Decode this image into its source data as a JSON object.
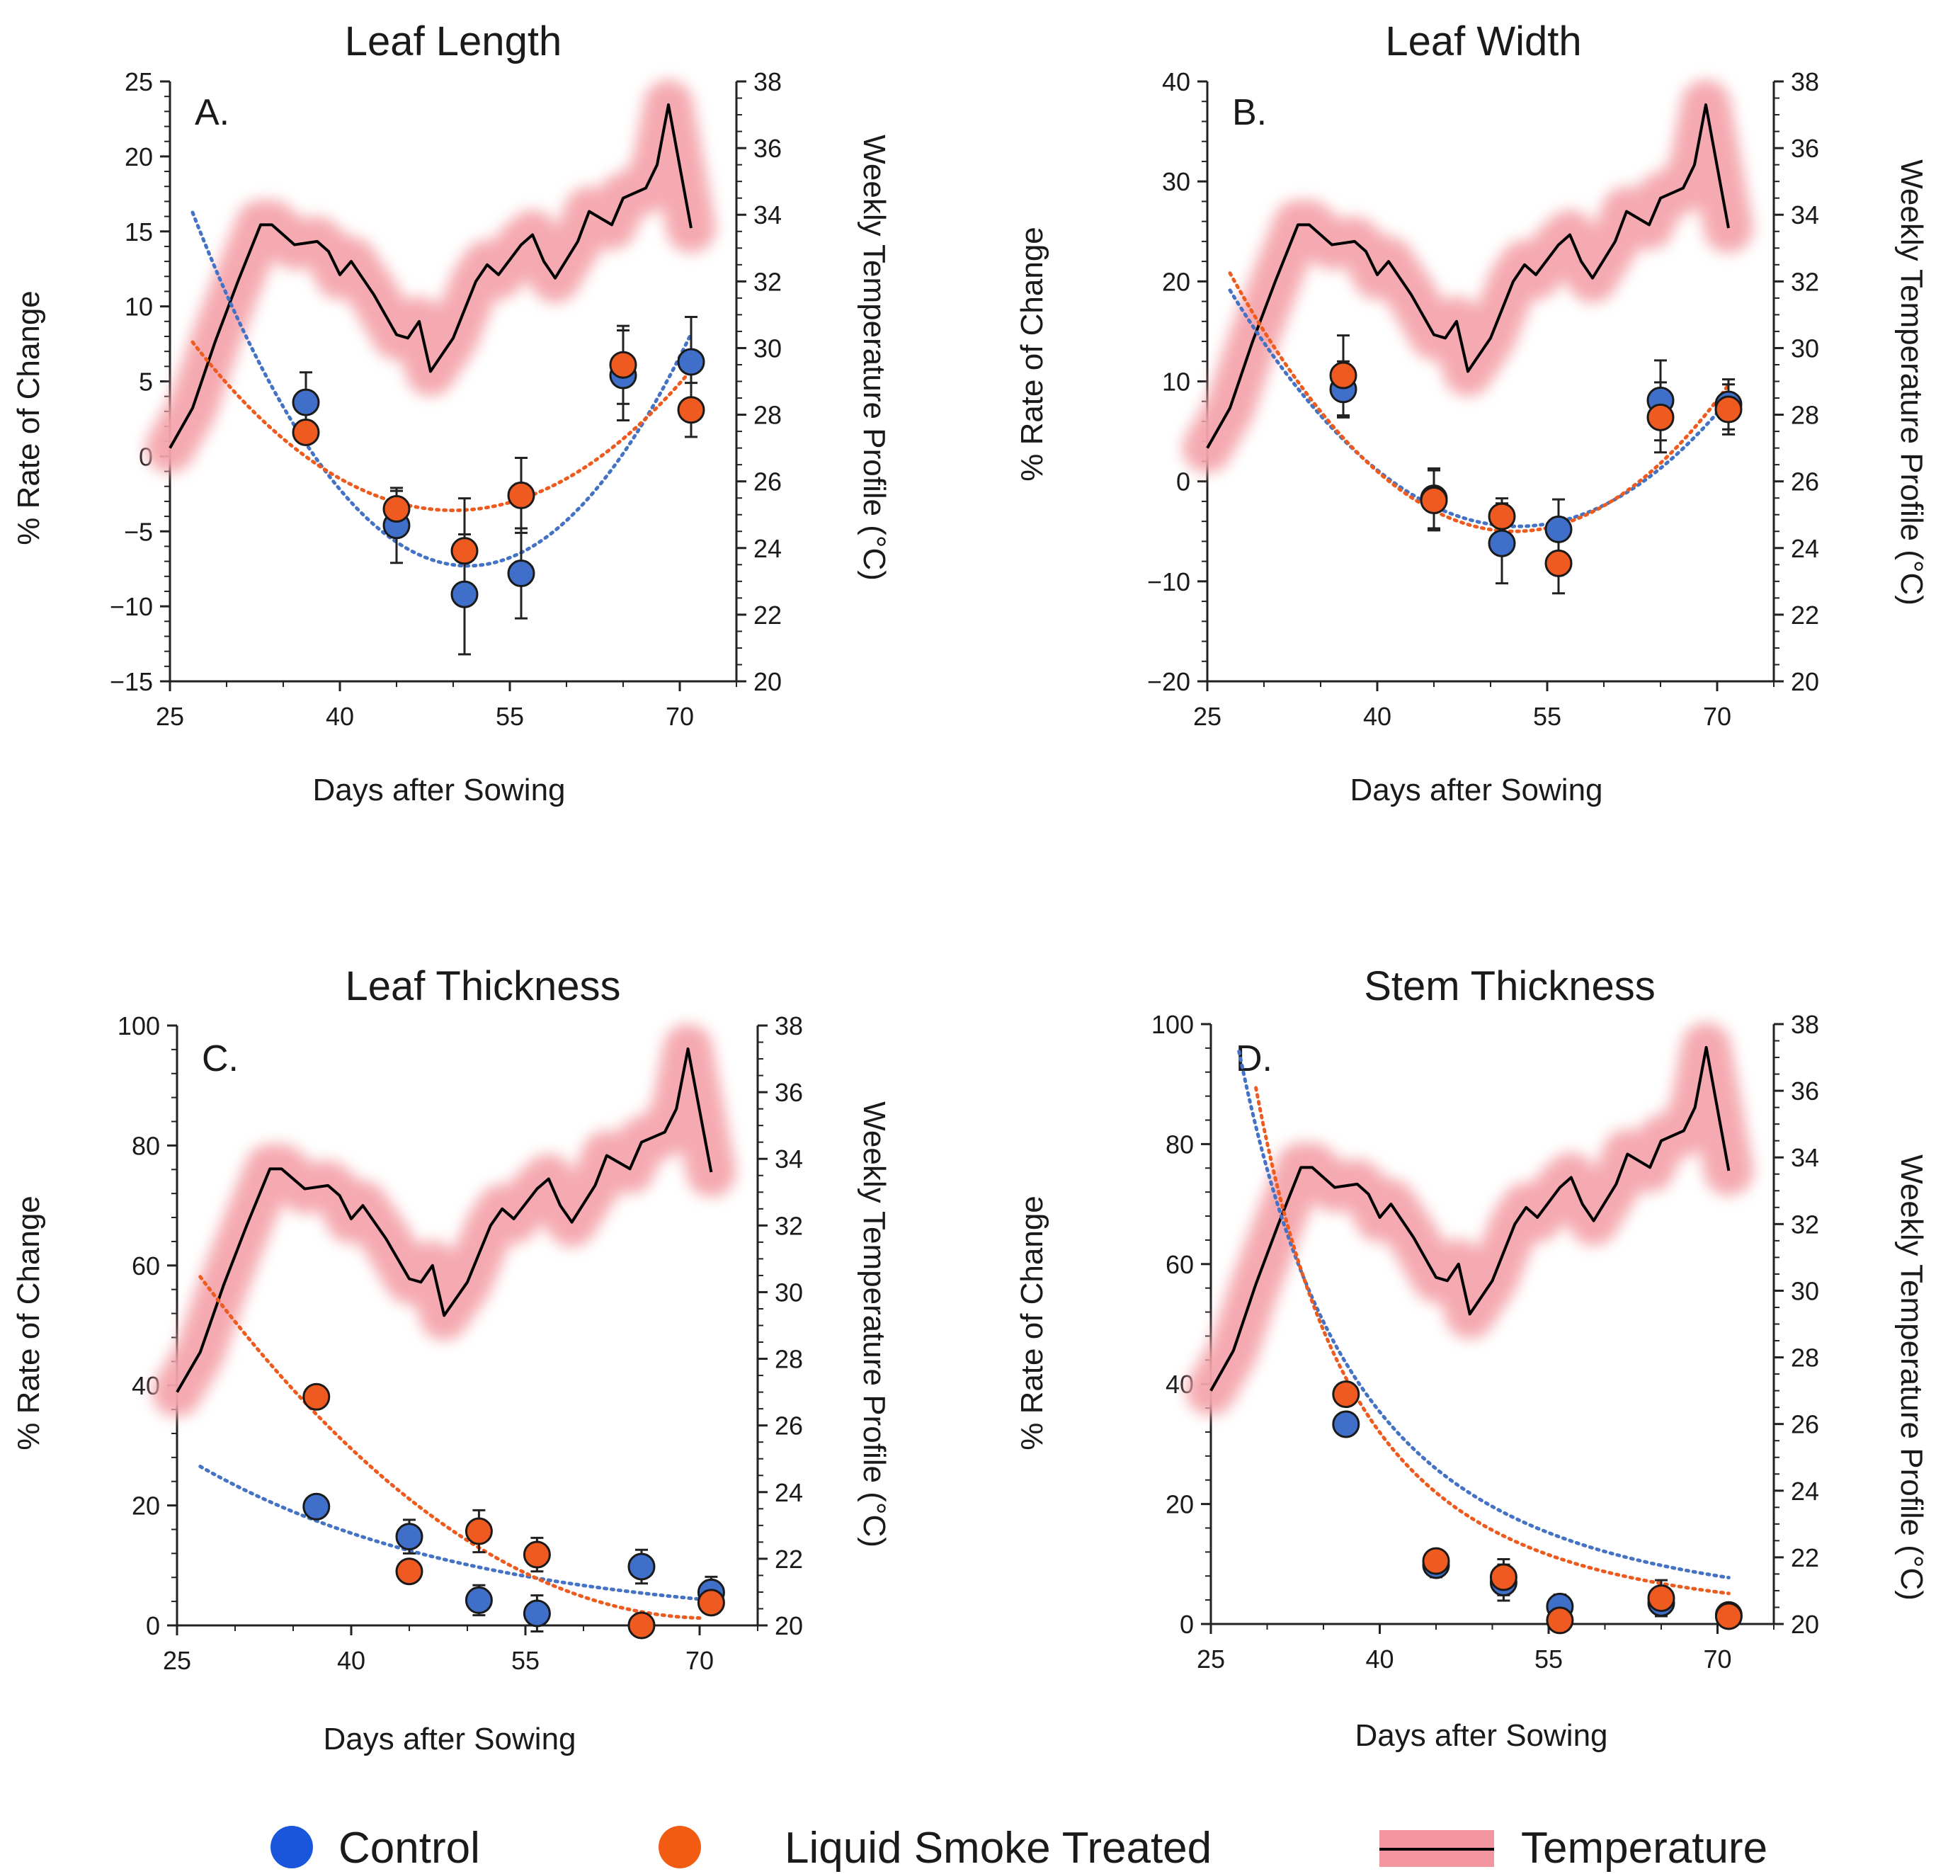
{
  "legend": {
    "control": "Control",
    "treated": "Liquid  Smoke Treated",
    "temperature": "Temperature"
  },
  "colors": {
    "control": "#4472c4",
    "treated": "#ed5b1e",
    "temperature_line": "#000000",
    "temperature_glow": "#f4a6ac"
  },
  "chart_data": [
    {
      "type": "scatter",
      "panel": "A.",
      "title": "Leaf Length",
      "xlabel": "Days after Sowing",
      "ylabel": "% Rate of Change",
      "y2label": "Weekly Temperature Profile (°C)",
      "xlim": [
        25,
        75
      ],
      "xticks": [
        25,
        40,
        55,
        70
      ],
      "ylim": [
        -15,
        25
      ],
      "yticks": [
        -15,
        -10,
        -5,
        0,
        5,
        10,
        15,
        20,
        25
      ],
      "y2lim": [
        20,
        38
      ],
      "y2ticks": [
        20,
        22,
        24,
        26,
        28,
        30,
        32,
        34,
        36,
        38
      ],
      "series": [
        {
          "name": "Control",
          "x": [
            37,
            45,
            51,
            56,
            65,
            71
          ],
          "values": [
            3.6,
            -4.6,
            -9.2,
            -7.8,
            5.4,
            6.3
          ],
          "err": [
            2.0,
            2.5,
            4.0,
            3.0,
            3.0,
            3.0
          ],
          "trend": {
            "from": 27,
            "to": 71,
            "a": 0.0399,
            "h": 51.3,
            "k": -7.3
          }
        },
        {
          "name": "Liquid Smoke Treated",
          "x": [
            37,
            45,
            51,
            56,
            65,
            71
          ],
          "values": [
            1.6,
            -3.5,
            -6.3,
            -2.6,
            6.1,
            3.1
          ],
          "err": [
            0,
            1.2,
            3.5,
            2.5,
            2.6,
            1.8
          ],
          "trend": {
            "from": 27,
            "to": 71,
            "a": 0.0212,
            "h": 50.0,
            "k": -3.6
          }
        }
      ]
    },
    {
      "type": "scatter",
      "panel": "B.",
      "title": "Leaf Width",
      "xlabel": "Days after Sowing",
      "ylabel": "% Rate of Change",
      "y2label": "Weekly Temperature Profile (°C)",
      "xlim": [
        25,
        75
      ],
      "xticks": [
        25,
        40,
        55,
        70
      ],
      "ylim": [
        -20,
        40
      ],
      "yticks": [
        -20,
        -10,
        0,
        10,
        20,
        30,
        40
      ],
      "y2lim": [
        20,
        38
      ],
      "y2ticks": [
        20,
        22,
        24,
        26,
        28,
        30,
        32,
        34,
        36,
        38
      ],
      "series": [
        {
          "name": "Control",
          "x": [
            37,
            45,
            51,
            56,
            65,
            71
          ],
          "values": [
            9.2,
            -1.7,
            -6.2,
            -4.8,
            8.1,
            7.7
          ],
          "err": [
            2.8,
            3.0,
            4.0,
            3.0,
            4.0,
            2.5
          ],
          "trend": {
            "from": 27,
            "to": 71,
            "a": 0.0366,
            "h": 52.4,
            "k": -4.5
          }
        },
        {
          "name": "Liquid Smoke Treated",
          "x": [
            37,
            45,
            51,
            56,
            65,
            71
          ],
          "values": [
            10.6,
            -1.9,
            -3.5,
            -8.2,
            6.4,
            7.2
          ],
          "err": [
            4.0,
            3.0,
            1.8,
            3.0,
            3.5,
            2.5
          ],
          "trend": {
            "from": 27,
            "to": 71,
            "a": 0.041,
            "h": 52.1,
            "k": -5.0
          }
        }
      ]
    },
    {
      "type": "scatter",
      "panel": "C.",
      "title": "Leaf Thickness",
      "xlabel": "Days after Sowing",
      "ylabel": "% Rate of Change",
      "y2label": "Weekly Temperature Profile (°C)",
      "xlim": [
        25,
        75
      ],
      "xticks": [
        25,
        40,
        55,
        70
      ],
      "ylim": [
        0,
        100
      ],
      "yticks": [
        0,
        20,
        40,
        60,
        80,
        100
      ],
      "y2lim": [
        20,
        38
      ],
      "y2ticks": [
        20,
        22,
        24,
        26,
        28,
        30,
        32,
        34,
        36,
        38
      ],
      "series": [
        {
          "name": "Control",
          "x": [
            37,
            45,
            51,
            56,
            65,
            71
          ],
          "values": [
            19.8,
            14.8,
            4.2,
            2.0,
            9.8,
            5.5
          ],
          "err": [
            0,
            2.8,
            2.5,
            3.0,
            2.8,
            2.6
          ],
          "trend": {
            "from": 27,
            "to": 71,
            "type": "exp",
            "y0": 26.5,
            "y1": 4.2
          }
        },
        {
          "name": "Liquid Smoke Treated",
          "x": [
            37,
            45,
            51,
            56,
            65,
            71
          ],
          "values": [
            38.1,
            9.0,
            15.7,
            11.8,
            0,
            3.8
          ],
          "err": [
            0,
            0,
            3.5,
            2.8,
            0,
            0
          ],
          "trend": {
            "from": 27,
            "to": 70,
            "type": "poly",
            "a": 0.0294,
            "h": 71.0,
            "k": 1.2
          }
        }
      ]
    },
    {
      "type": "scatter",
      "panel": "D.",
      "title": "Stem Thickness",
      "xlabel": "Days after Sowing",
      "ylabel": "% Rate of Change",
      "y2label": "Weekly Temperature Profile (°C)",
      "xlim": [
        25,
        75
      ],
      "xticks": [
        25,
        40,
        55,
        70
      ],
      "ylim": [
        0,
        100
      ],
      "yticks": [
        0,
        20,
        40,
        60,
        80,
        100
      ],
      "y2lim": [
        20,
        38
      ],
      "y2ticks": [
        20,
        22,
        24,
        26,
        28,
        30,
        32,
        34,
        36,
        38
      ],
      "series": [
        {
          "name": "Control",
          "x": [
            37,
            45,
            51,
            56,
            65,
            71
          ],
          "values": [
            33.3,
            9.8,
            6.9,
            2.9,
            3.5,
            1.5
          ],
          "err": [
            0,
            2.0,
            3.0,
            2.0,
            2.0,
            0
          ],
          "trend": {
            "from": 27.5,
            "to": 71,
            "type": "power",
            "k": 91,
            "p": 2.65
          }
        },
        {
          "name": "Liquid Smoke Treated",
          "x": [
            37,
            45,
            51,
            56,
            65,
            71
          ],
          "values": [
            38.3,
            10.5,
            7.8,
            0.6,
            4.3,
            1.3
          ],
          "err": [
            0,
            0,
            3.0,
            0,
            3.0,
            0
          ],
          "trend": {
            "from": 29,
            "to": 71,
            "type": "power",
            "k": 100,
            "p": 3.2
          }
        }
      ]
    }
  ],
  "temperature": {
    "x": [
      25,
      27,
      29,
      31,
      33,
      34,
      36,
      38,
      39,
      40,
      41,
      43,
      45,
      46,
      47,
      48,
      50,
      52,
      53,
      54,
      56,
      57,
      58,
      59,
      61,
      62,
      64,
      65,
      67,
      68,
      69,
      71
    ],
    "values": [
      27.0,
      28.2,
      30.2,
      32.0,
      33.7,
      33.7,
      33.1,
      33.2,
      32.9,
      32.2,
      32.6,
      31.6,
      30.4,
      30.3,
      30.8,
      29.3,
      30.3,
      32.0,
      32.5,
      32.2,
      33.1,
      33.4,
      32.6,
      32.1,
      33.2,
      34.1,
      33.7,
      34.5,
      34.8,
      35.5,
      37.3,
      33.6
    ]
  }
}
